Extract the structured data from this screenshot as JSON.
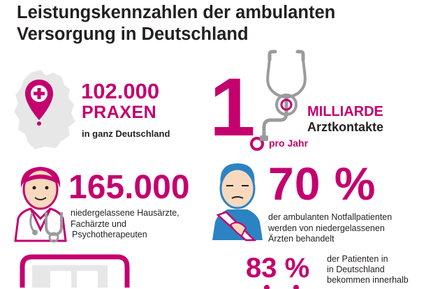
{
  "title": {
    "line1": "Leistungskennzahlen der ambulanten",
    "line2": "Versorgung in Deutschland"
  },
  "praxen": {
    "number": "102.000",
    "unit": "PRAXEN",
    "sub": "in ganz Deutschland"
  },
  "arztkontakte": {
    "number": "1",
    "comma": ",",
    "unit": "MILLIARDE",
    "label": "Arztkontakte",
    "sub": "pro Jahr"
  },
  "aerzte": {
    "number": "165.000",
    "line1": "niedergelassene Hausärzte,",
    "line2": "Fachärzte und",
    "line3": "Psychotherapeuten"
  },
  "notfall": {
    "number": "70 %",
    "line1": "der ambulanten Notfallpatienten",
    "line2": "werden von niedergelassenen",
    "line3": "Ärzten behandelt"
  },
  "patienten": {
    "number": "83 %",
    "line1": "der Patienten in",
    "line2": "in Deutschland",
    "line3": "bekommen innerhalb"
  },
  "colors": {
    "accent": "#c4006f",
    "text": "#231f20",
    "map": "#e7e7e8",
    "skin": "#f9d9be"
  }
}
